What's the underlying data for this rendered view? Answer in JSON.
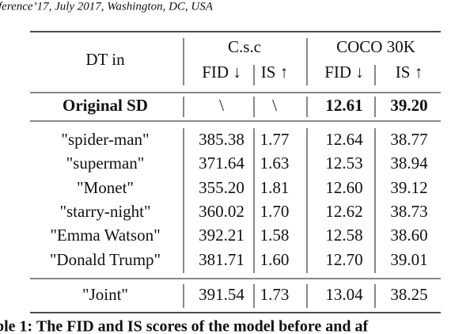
{
  "header": {
    "text": "ference’17, July 2017, Washington, DC, USA"
  },
  "table": {
    "row_header": "DT in",
    "groups": [
      "C.s.c",
      "COCO 30K"
    ],
    "columns": [
      "FID ↓",
      "IS ↑",
      "FID ↓",
      "IS ↑"
    ],
    "rows": [
      [
        "Original SD",
        "\\",
        "\\",
        "12.61",
        "39.20"
      ],
      [
        "\"spider-man\"",
        "385.38",
        "1.77",
        "12.64",
        "38.77"
      ],
      [
        "\"superman\"",
        "371.64",
        "1.63",
        "12.53",
        "38.94"
      ],
      [
        "\"Monet\"",
        "355.20",
        "1.81",
        "12.60",
        "39.12"
      ],
      [
        "\"starry-night\"",
        "360.02",
        "1.70",
        "12.62",
        "38.73"
      ],
      [
        "\"Emma Watson\"",
        "392.21",
        "1.58",
        "12.58",
        "38.60"
      ],
      [
        "\"Donald Trump\"",
        "381.71",
        "1.60",
        "12.70",
        "39.01"
      ],
      [
        "\"Joint\"",
        "391.54",
        "1.73",
        "13.04",
        "38.25"
      ]
    ]
  },
  "caption": "ble 1: The FID and IS scores of the model before and af"
}
